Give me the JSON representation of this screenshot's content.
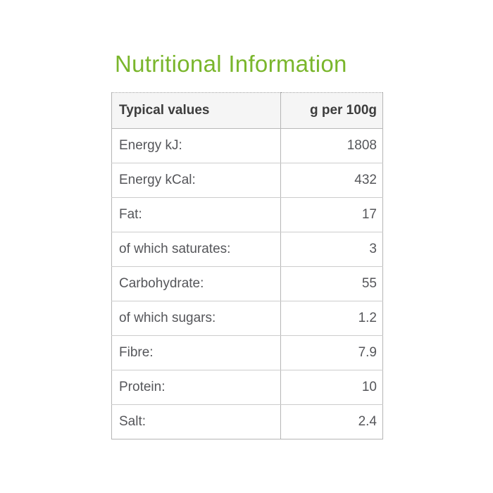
{
  "page": {
    "title": "Nutritional Information"
  },
  "colors": {
    "accent_green": "#7ab62c",
    "header_bg": "#f5f5f5",
    "header_text": "#3d3d3d",
    "body_text": "#55565a",
    "border": "#b5b5b5"
  },
  "table": {
    "headers": [
      "Typical values",
      "g per 100g"
    ],
    "rows": [
      {
        "label": "Energy kJ:",
        "value": "1808"
      },
      {
        "label": "Energy kCal:",
        "value": "432"
      },
      {
        "label": "Fat:",
        "value": "17"
      },
      {
        "label": "of which saturates:",
        "value": "3"
      },
      {
        "label": "Carbohydrate:",
        "value": "55"
      },
      {
        "label": "of which sugars:",
        "value": "1.2"
      },
      {
        "label": "Fibre:",
        "value": "7.9"
      },
      {
        "label": "Protein:",
        "value": "10"
      },
      {
        "label": "Salt:",
        "value": "2.4"
      }
    ]
  }
}
